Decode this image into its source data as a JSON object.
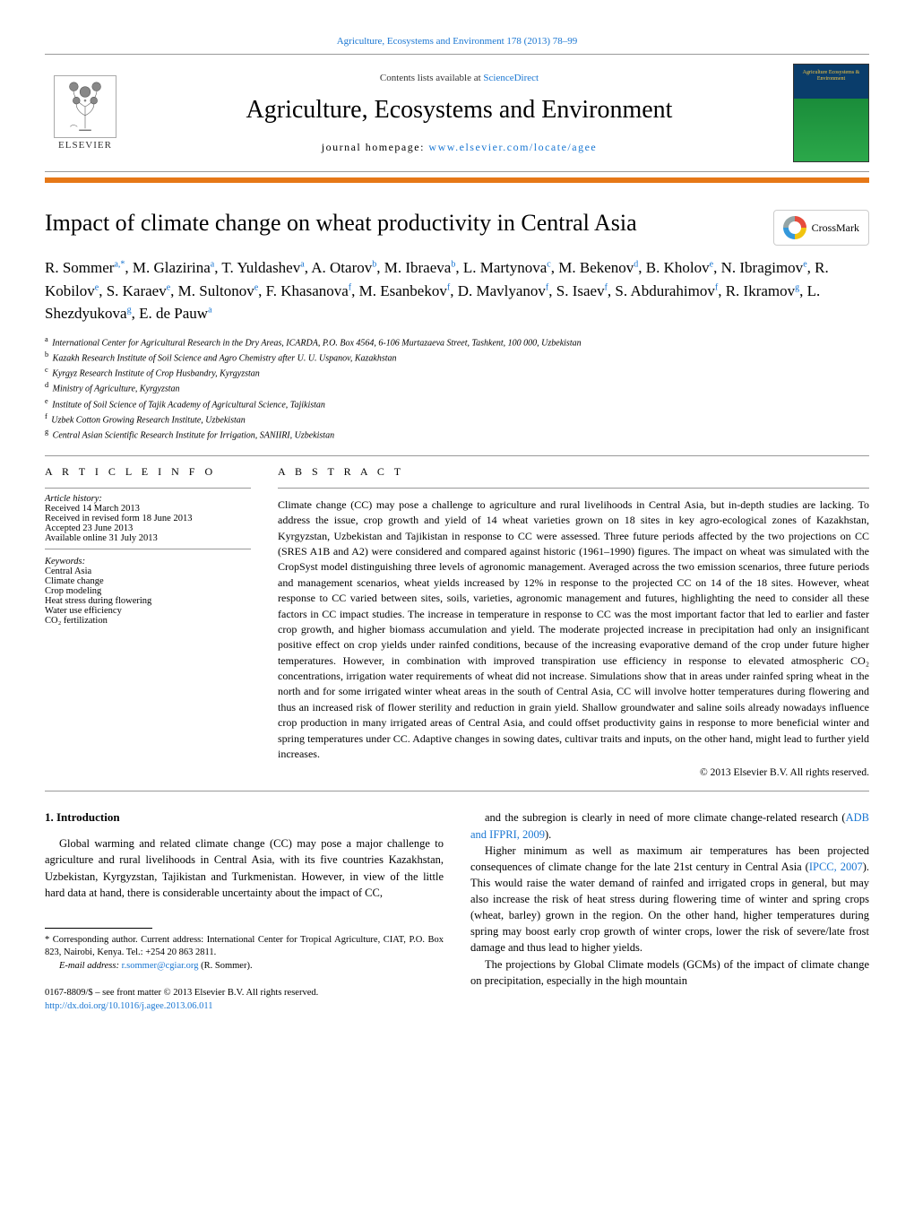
{
  "top_citation": "Agriculture, Ecosystems and Environment 178 (2013) 78–99",
  "header": {
    "contents_prefix": "Contents lists available at ",
    "contents_link": "ScienceDirect",
    "journal_title": "Agriculture, Ecosystems and Environment",
    "homepage_prefix": "journal homepage: ",
    "homepage_link": "www.elsevier.com/locate/agee",
    "publisher_name": "ELSEVIER",
    "cover_text": "Agriculture Ecosystems & Environment"
  },
  "crossmark_label": "CrossMark",
  "article_title": "Impact of climate change on wheat productivity in Central Asia",
  "authors_html": "R. Sommer<sup>a,*</sup>, M. Glazirina<sup>a</sup>, T. Yuldashev<sup>a</sup>, A. Otarov<sup>b</sup>, M. Ibraeva<sup>b</sup>, L. Martynova<sup>c</sup>, M. Bekenov<sup>d</sup>, B. Kholov<sup>e</sup>, N. Ibragimov<sup>e</sup>, R. Kobilov<sup>e</sup>, S. Karaev<sup>e</sup>, M. Sultonov<sup>e</sup>, F. Khasanova<sup>f</sup>, M. Esanbekov<sup>f</sup>, D. Mavlyanov<sup>f</sup>, S. Isaev<sup>f</sup>, S. Abdurahimov<sup>f</sup>, R. Ikramov<sup>g</sup>, L. Shezdyukova<sup>g</sup>, E. de Pauw<sup>a</sup>",
  "affiliations": [
    {
      "sup": "a",
      "text": "International Center for Agricultural Research in the Dry Areas, ICARDA, P.O. Box 4564, 6-106 Murtazaeva Street, Tashkent, 100 000, Uzbekistan"
    },
    {
      "sup": "b",
      "text": "Kazakh Research Institute of Soil Science and Agro Chemistry after U. U. Uspanov, Kazakhstan"
    },
    {
      "sup": "c",
      "text": "Kyrgyz Research Institute of Crop Husbandry, Kyrgyzstan"
    },
    {
      "sup": "d",
      "text": "Ministry of Agriculture, Kyrgyzstan"
    },
    {
      "sup": "e",
      "text": "Institute of Soil Science of Tajik Academy of Agricultural Science, Tajikistan"
    },
    {
      "sup": "f",
      "text": "Uzbek Cotton Growing Research Institute, Uzbekistan"
    },
    {
      "sup": "g",
      "text": "Central Asian Scientific Research Institute for Irrigation, SANIIRI, Uzbekistan"
    }
  ],
  "info": {
    "article_info_heading": "A R T I C L E   I N F O",
    "abstract_heading": "A B S T R A C T",
    "history_label": "Article history:",
    "history": [
      "Received 14 March 2013",
      "Received in revised form 18 June 2013",
      "Accepted 23 June 2013",
      "Available online 31 July 2013"
    ],
    "keywords_label": "Keywords:",
    "keywords": [
      "Central Asia",
      "Climate change",
      "Crop modeling",
      "Heat stress during flowering",
      "Water use efficiency",
      "CO₂ fertilization"
    ]
  },
  "abstract": "Climate change (CC) may pose a challenge to agriculture and rural livelihoods in Central Asia, but in-depth studies are lacking. To address the issue, crop growth and yield of 14 wheat varieties grown on 18 sites in key agro-ecological zones of Kazakhstan, Kyrgyzstan, Uzbekistan and Tajikistan in response to CC were assessed. Three future periods affected by the two projections on CC (SRES A1B and A2) were considered and compared against historic (1961–1990) figures. The impact on wheat was simulated with the CropSyst model distinguishing three levels of agronomic management. Averaged across the two emission scenarios, three future periods and management scenarios, wheat yields increased by 12% in response to the projected CC on 14 of the 18 sites. However, wheat response to CC varied between sites, soils, varieties, agronomic management and futures, highlighting the need to consider all these factors in CC impact studies. The increase in temperature in response to CC was the most important factor that led to earlier and faster crop growth, and higher biomass accumulation and yield. The moderate projected increase in precipitation had only an insignificant positive effect on crop yields under rainfed conditions, because of the increasing evaporative demand of the crop under future higher temperatures. However, in combination with improved transpiration use efficiency in response to elevated atmospheric CO₂ concentrations, irrigation water requirements of wheat did not increase. Simulations show that in areas under rainfed spring wheat in the north and for some irrigated winter wheat areas in the south of Central Asia, CC will involve hotter temperatures during flowering and thus an increased risk of flower sterility and reduction in grain yield. Shallow groundwater and saline soils already nowadays influence crop production in many irrigated areas of Central Asia, and could offset productivity gains in response to more beneficial winter and spring temperatures under CC. Adaptive changes in sowing dates, cultivar traits and inputs, on the other hand, might lead to further yield increases.",
  "copyright": "© 2013 Elsevier B.V. All rights reserved.",
  "section1": {
    "heading": "1. Introduction",
    "para1_left": "Global warming and related climate change (CC) may pose a major challenge to agriculture and rural livelihoods in Central Asia, with its five countries Kazakhstan, Uzbekistan, Kyrgyzstan, Tajikistan and Turkmenistan. However, in view of the little hard data at hand, there is considerable uncertainty about the impact of CC,",
    "para1_right_a": "and the subregion is clearly in need of more climate change-related research (",
    "ref1": "ADB and IFPRI, 2009",
    "para1_right_b": ").",
    "para2_a": "Higher minimum as well as maximum air temperatures has been projected consequences of climate change for the late 21st century in Central Asia (",
    "ref2": "IPCC, 2007",
    "para2_b": "). This would raise the water demand of rainfed and irrigated crops in general, but may also increase the risk of heat stress during flowering time of winter and spring crops (wheat, barley) grown in the region. On the other hand, higher temperatures during spring may boost early crop growth of winter crops, lower the risk of severe/late frost damage and thus lead to higher yields.",
    "para3": "The projections by Global Climate models (GCMs) of the impact of climate change on precipitation, especially in the high mountain"
  },
  "footnote": {
    "corr_label": "* Corresponding author. Current address: International Center for Tropical Agriculture, CIAT, P.O. Box 823, Nairobi, Kenya. Tel.: +254 20 863 2811.",
    "email_label": "E-mail address: ",
    "email": "r.sommer@cgiar.org",
    "email_who": " (R. Sommer)."
  },
  "footer": {
    "issn_line": "0167-8809/$ – see front matter © 2013 Elsevier B.V. All rights reserved.",
    "doi": "http://dx.doi.org/10.1016/j.agee.2013.06.011"
  },
  "colors": {
    "orange": "#e67817",
    "link": "#1976d2",
    "affil_sup": "#1976d2"
  }
}
